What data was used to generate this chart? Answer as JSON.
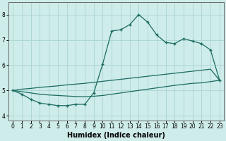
{
  "xlabel": "Humidex (Indice chaleur)",
  "bg_color": "#ceecea",
  "grid_color": "#aed8d4",
  "line_color": "#1a6b60",
  "x_hours": [
    0,
    1,
    2,
    3,
    4,
    5,
    6,
    7,
    8,
    9,
    10,
    11,
    12,
    13,
    14,
    15,
    16,
    17,
    18,
    19,
    20,
    21,
    22,
    23
  ],
  "main_line": [
    5.0,
    4.85,
    4.65,
    4.5,
    4.45,
    4.4,
    4.4,
    4.45,
    4.45,
    4.9,
    6.05,
    7.35,
    7.4,
    7.6,
    8.0,
    7.7,
    7.2,
    6.9,
    6.85,
    7.05,
    6.95,
    6.85,
    6.6,
    5.4
  ],
  "upper_line": [
    5.0,
    5.05,
    5.08,
    5.12,
    5.15,
    5.18,
    5.22,
    5.25,
    5.28,
    5.32,
    5.36,
    5.4,
    5.44,
    5.48,
    5.52,
    5.56,
    5.6,
    5.64,
    5.68,
    5.72,
    5.76,
    5.8,
    5.84,
    5.4
  ],
  "lower_line": [
    5.0,
    4.95,
    4.9,
    4.85,
    4.82,
    4.8,
    4.78,
    4.76,
    4.75,
    4.77,
    4.8,
    4.85,
    4.9,
    4.95,
    5.0,
    5.05,
    5.1,
    5.15,
    5.2,
    5.24,
    5.28,
    5.3,
    5.35,
    5.4
  ],
  "ylim": [
    3.8,
    8.5
  ],
  "xlim": [
    -0.5,
    23.5
  ],
  "yticks": [
    4,
    5,
    6,
    7,
    8
  ],
  "xticks": [
    0,
    1,
    2,
    3,
    4,
    5,
    6,
    7,
    8,
    9,
    10,
    11,
    12,
    13,
    14,
    15,
    16,
    17,
    18,
    19,
    20,
    21,
    22,
    23
  ]
}
